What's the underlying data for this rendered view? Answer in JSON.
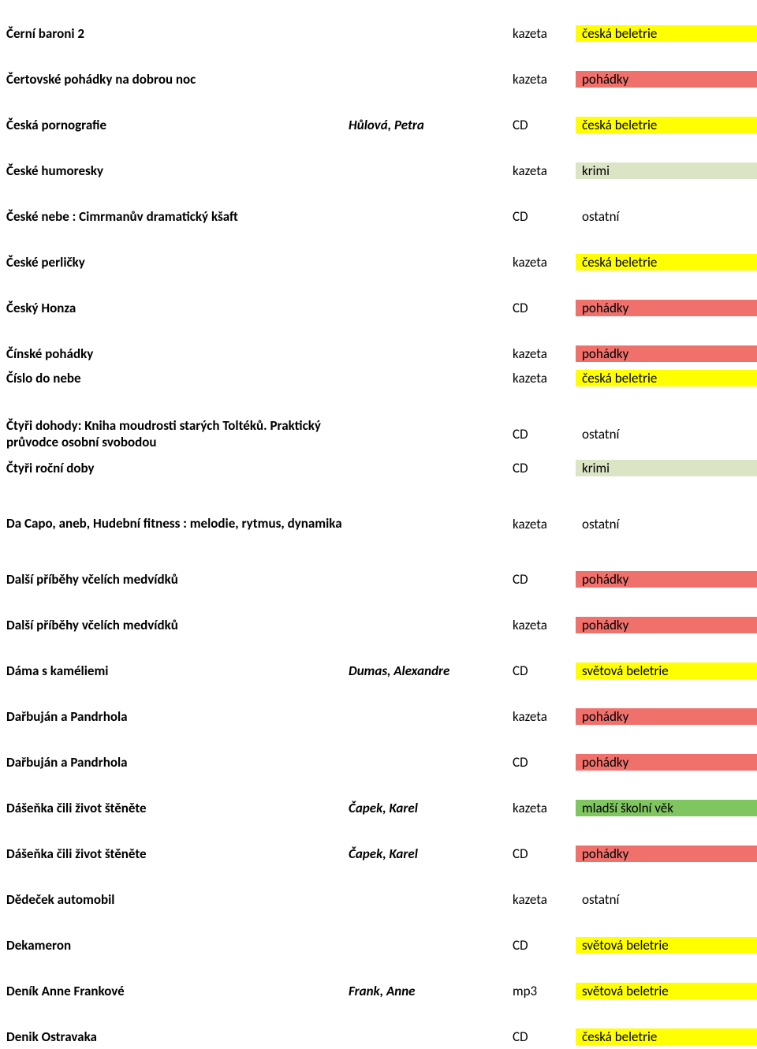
{
  "colors": {
    "yellow": "#ffff00",
    "pink": "#f0716c",
    "olive": "#dce4c6",
    "white": "#ffffff",
    "green_top": "#ffff00",
    "green_body": "#80c660",
    "yellow_top": "#f0716c"
  },
  "rows": [
    {
      "title": "Černí baroni 2",
      "author": "",
      "media": "kazeta",
      "category": "česká beletrie",
      "cat_top": "#ffff00",
      "cat_body": "#ffff00",
      "sub": false
    },
    {
      "title": "Čertovské pohádky na dobrou noc",
      "author": "",
      "media": "kazeta",
      "category": "pohádky",
      "cat_top": "#ffff00",
      "cat_body": "#f0716c",
      "sub": false
    },
    {
      "title": "Česká pornografie",
      "author": "Hůlová, Petra",
      "media": "CD",
      "category": "česká beletrie",
      "cat_top": "#f0716c",
      "cat_body": "#ffff00",
      "sub": false
    },
    {
      "title": "České humoresky",
      "author": "",
      "media": "kazeta",
      "category": "krimi",
      "cat_top": "#ffff00",
      "cat_body": "#dce4c6",
      "sub": false
    },
    {
      "title": "České nebe :  Cimrmanův dramatický kšaft",
      "author": "",
      "media": "CD",
      "category": "ostatní",
      "cat_top": "#ffffff",
      "cat_body": "#ffffff",
      "sub": false
    },
    {
      "title": "České perličky",
      "author": "",
      "media": "kazeta",
      "category": "česká beletrie",
      "cat_top": "#ffff00",
      "cat_body": "#ffff00",
      "sub": false
    },
    {
      "title": "Český Honza",
      "author": "",
      "media": "CD",
      "category": "pohádky",
      "cat_top": "#ffff00",
      "cat_body": "#f0716c",
      "sub": false
    },
    {
      "title": "Čínské pohádky",
      "author": "",
      "media": "kazeta",
      "category": "pohádky",
      "cat_top": "#f0716c",
      "cat_body": "#f0716c",
      "sub": false
    },
    {
      "title": "Číslo do nebe",
      "author": "",
      "media": "kazeta",
      "category": "česká beletrie",
      "cat_top": "#f0716c",
      "cat_body": "#ffff00",
      "sub": false,
      "nospacer": true
    },
    {
      "title": "Čtyři dohody: Kniha moudrosti starých Toltéků. Praktický průvodce osobní svobodou",
      "author": "",
      "media": "CD",
      "category": "ostatní",
      "cat_top": "#ffffff",
      "cat_body": "#ffffff",
      "sub": false,
      "multiline": true
    },
    {
      "title": "Čtyři roční doby",
      "author": "",
      "media": "CD",
      "category": "krimi",
      "cat_top": "#dce4c6",
      "cat_body": "#dce4c6",
      "sub": false,
      "nospacer": true
    },
    {
      "title": "Da Capo, aneb, Hudební fitness :  melodie, rytmus, dynamika",
      "author": "",
      "media": "kazeta",
      "category": "ostatní",
      "cat_top": "#ffffff",
      "cat_body": "#ffffff",
      "sub": false,
      "multiline": true
    },
    {
      "title": "Další příběhy včelích medvídků",
      "author": "",
      "media": "CD",
      "category": "pohádky",
      "cat_top": "#f0716c",
      "cat_body": "#f0716c",
      "sub": false
    },
    {
      "title": "Další příběhy včelích medvídků",
      "author": "",
      "media": "kazeta",
      "category": "pohádky",
      "cat_top": "#f0716c",
      "cat_body": "#f0716c",
      "sub": false
    },
    {
      "title": "Dáma s kaméliemi",
      "author": "Dumas, Alexandre",
      "media": "CD",
      "category": "světová beletrie",
      "cat_top": "#f0716c",
      "cat_body": "#ffff00",
      "sub": false
    },
    {
      "title": "Dařbuján a Pandrhola",
      "author": "",
      "media": "kazeta",
      "category": "pohádky",
      "cat_top": "#ffff00",
      "cat_body": "#f0716c",
      "sub": false
    },
    {
      "title": "Dařbuján a Pandrhola",
      "author": "",
      "media": "CD",
      "category": "pohádky",
      "cat_top": "#f0716c",
      "cat_body": "#f0716c",
      "sub": false
    },
    {
      "title": "Dášeňka čili život štěněte",
      "author": "Čapek, Karel",
      "media": "kazeta",
      "category": "mladší školní věk",
      "cat_top": "#f0716c",
      "cat_body": "#80c660",
      "sub": false
    },
    {
      "title": "Dášeňka čili život štěněte",
      "author": "Čapek, Karel",
      "media": "CD",
      "category": "pohádky",
      "cat_top": "#80c660",
      "cat_body": "#f0716c",
      "sub": false
    },
    {
      "title": "Dědeček automobil",
      "author": "",
      "media": "kazeta",
      "category": "ostatní",
      "cat_top": "#ffffff",
      "cat_body": "#ffffff",
      "sub": false
    },
    {
      "title": "Dekameron",
      "author": "",
      "media": "CD",
      "category": "světová beletrie",
      "cat_top": "#ffff00",
      "cat_body": "#ffff00",
      "sub": false
    },
    {
      "title": "Deník Anne Frankové",
      "author": "Frank, Anne",
      "media": "mp3",
      "category": "světová beletrie",
      "cat_top": "#ffff00",
      "cat_body": "#ffff00",
      "sub": false
    },
    {
      "title": "Denik Ostravaka",
      "author": "",
      "media": "CD",
      "category": "česká beletrie",
      "cat_top": "#ffff00",
      "cat_body": "#ffff00",
      "sub": false
    }
  ]
}
